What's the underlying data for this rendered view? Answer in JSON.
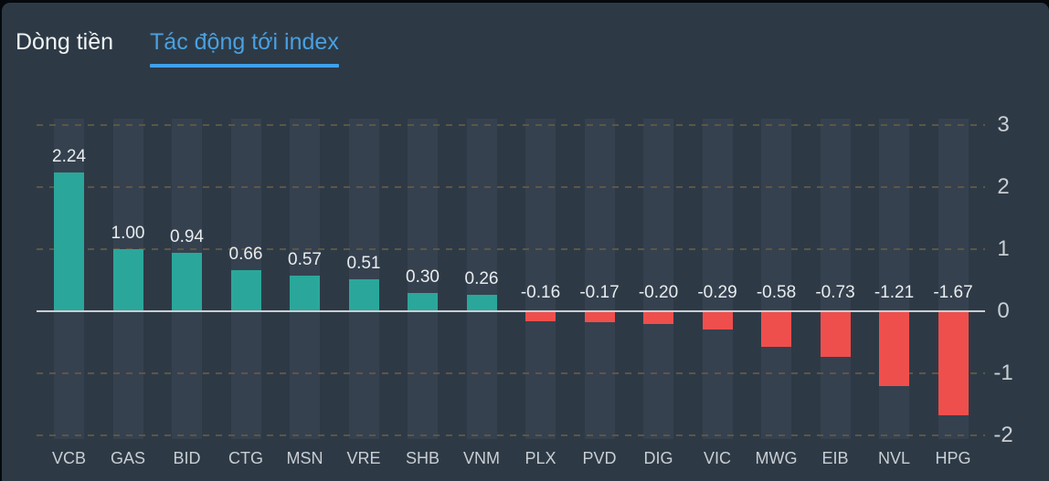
{
  "tabs": [
    {
      "label": "Dòng tiền",
      "active": false
    },
    {
      "label": "Tác động tới index",
      "active": true
    }
  ],
  "chart_data": {
    "type": "bar",
    "title": "Tác động tới index",
    "orientation": "vertical",
    "categories": [
      "VCB",
      "GAS",
      "BID",
      "CTG",
      "MSN",
      "VRE",
      "SHB",
      "VNM",
      "PLX",
      "PVD",
      "DIG",
      "VIC",
      "MWG",
      "EIB",
      "NVL",
      "HPG"
    ],
    "values": [
      2.24,
      1.0,
      0.94,
      0.66,
      0.57,
      0.51,
      0.3,
      0.26,
      -0.16,
      -0.17,
      -0.2,
      -0.29,
      -0.58,
      -0.73,
      -1.21,
      -1.67
    ],
    "value_labels": [
      "2.24",
      "1.00",
      "0.94",
      "0.66",
      "0.57",
      "0.51",
      "0.30",
      "0.26",
      "-0.16",
      "-0.17",
      "-0.20",
      "-0.29",
      "-0.58",
      "-0.73",
      "-1.21",
      "-1.67"
    ],
    "xlabel": "",
    "ylabel": "",
    "y_ticks": [
      3,
      2,
      1,
      0,
      -1,
      -2
    ],
    "ylim": [
      -2.1,
      3.1
    ],
    "y_axis_side": "right",
    "grid": "dashed horizontal, solid zero line",
    "legend": "none",
    "column_background_bands": true
  },
  "theme": {
    "panel_bg": "#2d3a46",
    "band": "#35414f",
    "positive": "#2aa79a",
    "negative": "#ef4f4c",
    "zero_line": "#c9ced2",
    "grid_dash": "#5e5645",
    "tick_label": "#c9ced3",
    "value_label": "#e9ecee",
    "tab_active_color": "#4aa0e0",
    "tab_underline": "#3fa0ea",
    "tab_inactive_color": "#f2f4f5",
    "frame": "#06090c"
  }
}
